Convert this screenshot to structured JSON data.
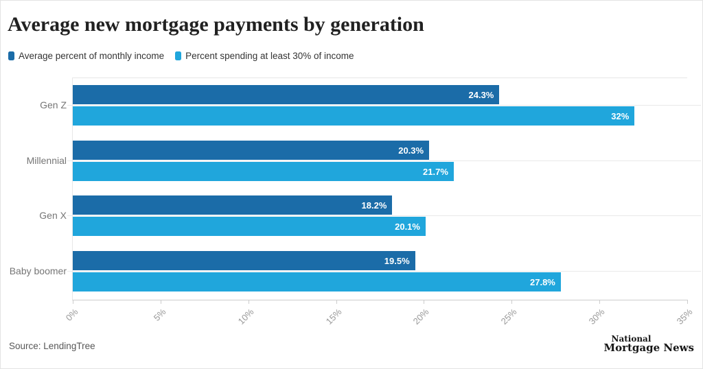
{
  "title": "Average new mortgage payments by generation",
  "legend": [
    {
      "label": "Average percent of monthly income",
      "color": "#1b6ca8"
    },
    {
      "label": "Percent spending at least 30% of income",
      "color": "#20a6dc"
    }
  ],
  "chart_data": {
    "type": "bar",
    "orientation": "horizontal",
    "title": "Average new mortgage payments by generation",
    "categories": [
      "Gen Z",
      "Millennial",
      "Gen X",
      "Baby boomer"
    ],
    "series": [
      {
        "name": "Average percent of monthly income",
        "color": "#1b6ca8",
        "values": [
          24.3,
          20.3,
          18.2,
          19.5
        ],
        "labels": [
          "24.3%",
          "20.3%",
          "18.2%",
          "19.5%"
        ]
      },
      {
        "name": "Percent spending at least 30% of income",
        "color": "#20a6dc",
        "values": [
          32,
          21.7,
          20.1,
          27.8
        ],
        "labels": [
          "32%",
          "21.7%",
          "20.1%",
          "27.8%"
        ]
      }
    ],
    "xlim": [
      0,
      35
    ],
    "x_tick_values": [
      0,
      5,
      10,
      15,
      20,
      25,
      30,
      35
    ],
    "x_tick_labels": [
      "0%",
      "5%",
      "10%",
      "15%",
      "20%",
      "25%",
      "30%",
      "35%"
    ],
    "xlabel": "",
    "ylabel": "",
    "grid": "category-lines",
    "legend_position": "top-left",
    "value_labels": "inside-end"
  },
  "footer": {
    "source": "Source: LendingTree",
    "logo_line1": "National",
    "logo_line2": "Mortgage News"
  }
}
